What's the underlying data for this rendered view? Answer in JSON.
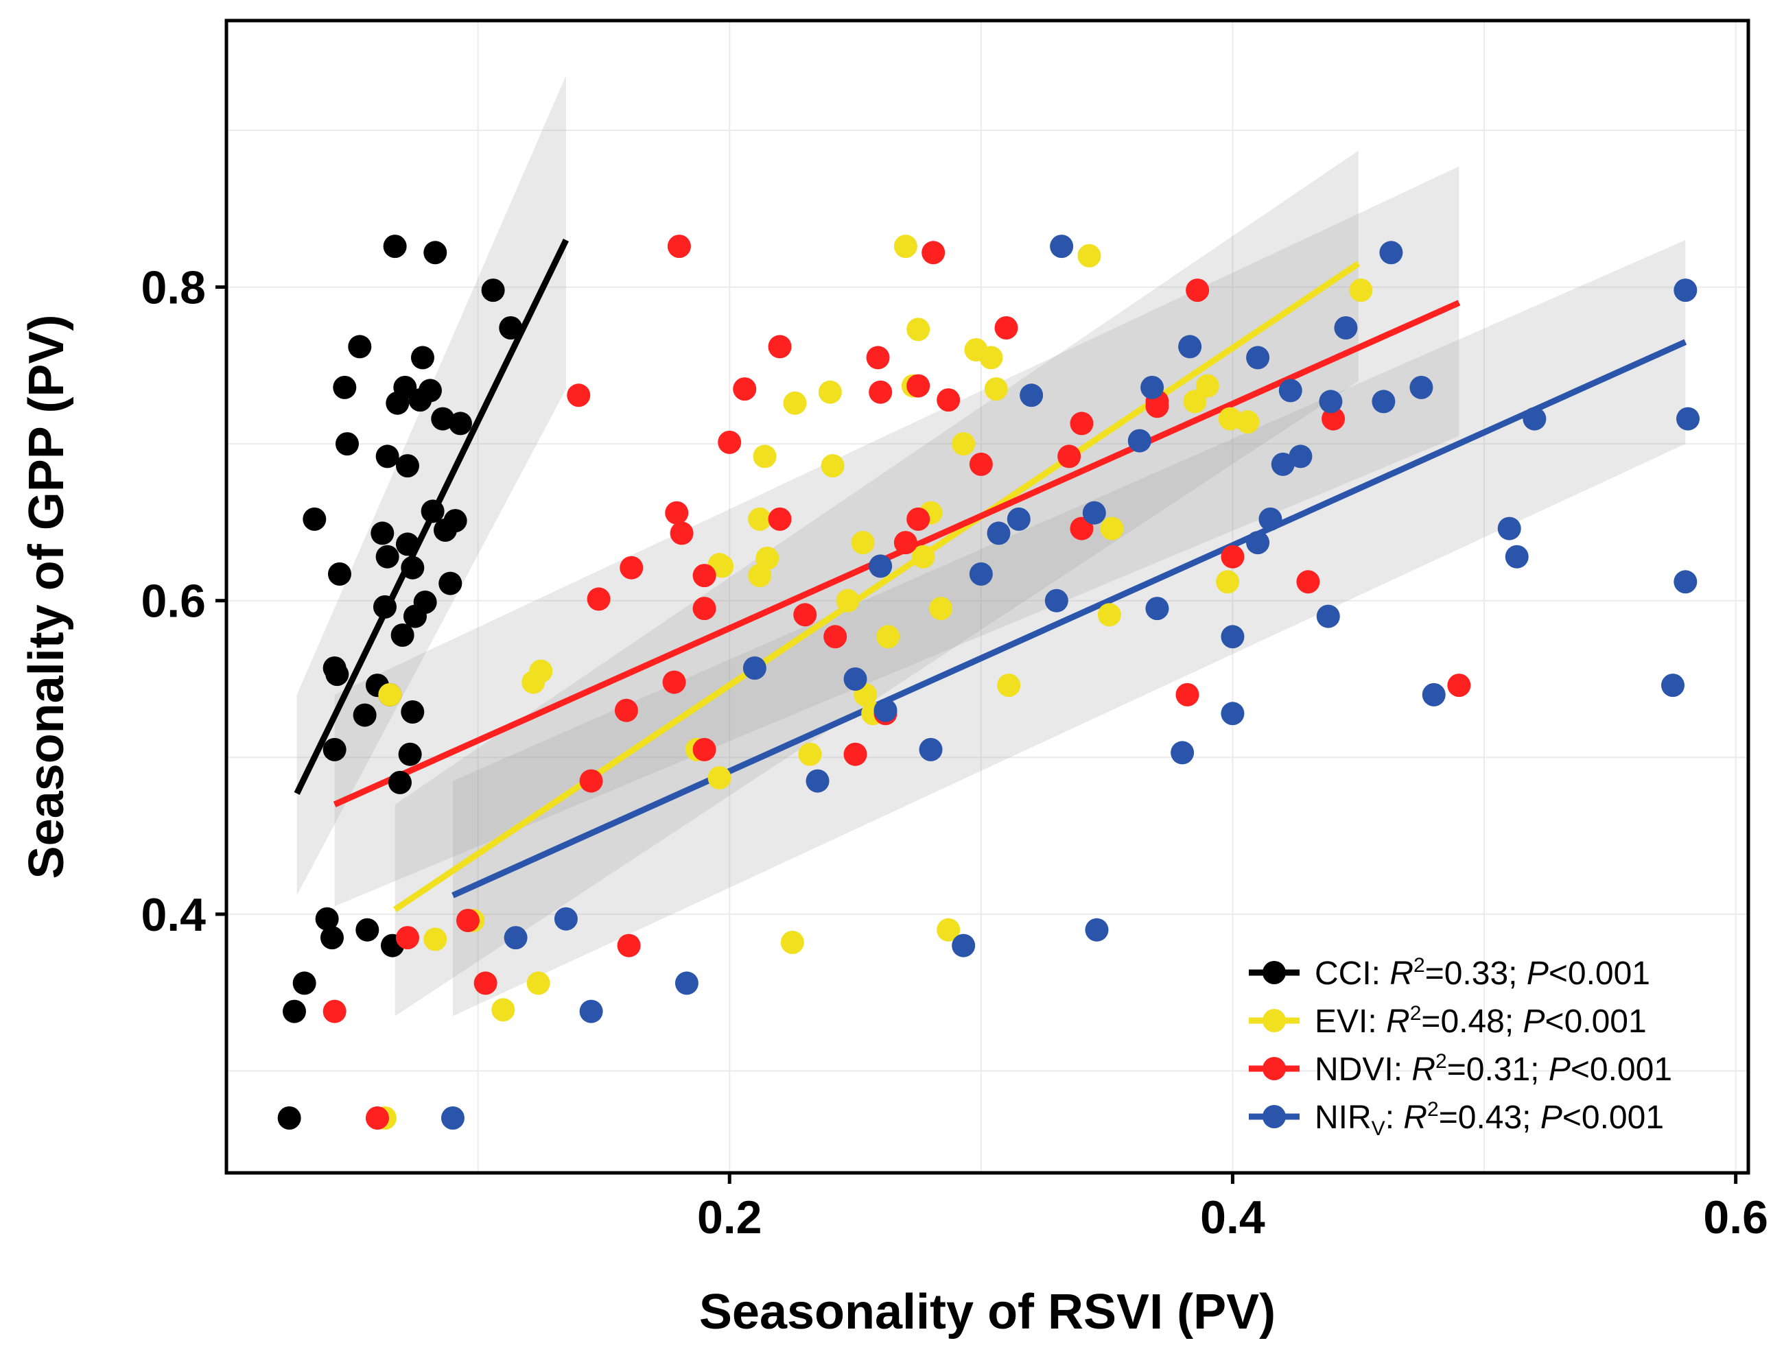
{
  "chart_data": {
    "type": "scatter",
    "title": "",
    "xlabel": "Seasonality of RSVI (PV)",
    "ylabel": "Seasonality of GPP (PV)",
    "xlim": [
      0.0,
      0.605
    ],
    "ylim": [
      0.235,
      0.97
    ],
    "xticks": [
      0.2,
      0.4,
      0.6
    ],
    "xtick_labels": [
      "0.2",
      "0.4",
      "0.6"
    ],
    "yticks": [
      0.4,
      0.6,
      0.8
    ],
    "ytick_labels": [
      "0.4",
      "0.6",
      "0.8"
    ],
    "grid": true,
    "legend_position": "bottom-right",
    "series": [
      {
        "name": "CCI",
        "label": "CCI",
        "r2": "0.33",
        "p": "0.001",
        "color": "#000000",
        "fit": {
          "x0": 0.028,
          "y0": 0.477,
          "x1": 0.135,
          "y1": 0.83
        },
        "ci": {
          "x0": 0.028,
          "x1": 0.135,
          "lo0": 0.412,
          "hi0": 0.54,
          "lo1": 0.735,
          "hi1": 0.935
        },
        "points": [
          [
            0.035,
            0.652
          ],
          [
            0.04,
            0.397
          ],
          [
            0.042,
            0.385
          ],
          [
            0.043,
            0.505
          ],
          [
            0.044,
            0.553
          ],
          [
            0.045,
            0.617
          ],
          [
            0.047,
            0.736
          ],
          [
            0.048,
            0.7
          ],
          [
            0.053,
            0.762
          ],
          [
            0.056,
            0.39
          ],
          [
            0.055,
            0.527
          ],
          [
            0.06,
            0.546
          ],
          [
            0.062,
            0.643
          ],
          [
            0.063,
            0.596
          ],
          [
            0.064,
            0.628
          ],
          [
            0.064,
            0.692
          ],
          [
            0.065,
            0.54
          ],
          [
            0.066,
            0.38
          ],
          [
            0.067,
            0.826
          ],
          [
            0.068,
            0.726
          ],
          [
            0.07,
            0.578
          ],
          [
            0.071,
            0.736
          ],
          [
            0.072,
            0.636
          ],
          [
            0.072,
            0.686
          ],
          [
            0.073,
            0.502
          ],
          [
            0.074,
            0.621
          ],
          [
            0.075,
            0.59
          ],
          [
            0.077,
            0.728
          ],
          [
            0.078,
            0.755
          ],
          [
            0.079,
            0.599
          ],
          [
            0.081,
            0.734
          ],
          [
            0.082,
            0.657
          ],
          [
            0.083,
            0.822
          ],
          [
            0.086,
            0.716
          ],
          [
            0.087,
            0.645
          ],
          [
            0.089,
            0.611
          ],
          [
            0.091,
            0.651
          ],
          [
            0.093,
            0.713
          ],
          [
            0.106,
            0.798
          ],
          [
            0.113,
            0.774
          ],
          [
            0.031,
            0.356
          ],
          [
            0.027,
            0.338
          ],
          [
            0.025,
            0.27
          ],
          [
            0.069,
            0.484
          ],
          [
            0.074,
            0.529
          ],
          [
            0.043,
            0.557
          ]
        ]
      },
      {
        "name": "EVI",
        "label": "EVI",
        "r2": "0.48",
        "p": "0.001",
        "color": "#f0e020",
        "fit": {
          "x0": 0.067,
          "y0": 0.403,
          "x1": 0.45,
          "y1": 0.815
        },
        "ci": {
          "x0": 0.067,
          "x1": 0.45,
          "lo0": 0.335,
          "hi0": 0.47,
          "lo1": 0.74,
          "hi1": 0.887
        },
        "points": [
          [
            0.083,
            0.384
          ],
          [
            0.098,
            0.396
          ],
          [
            0.11,
            0.339
          ],
          [
            0.124,
            0.356
          ],
          [
            0.125,
            0.555
          ],
          [
            0.122,
            0.548
          ],
          [
            0.196,
            0.487
          ],
          [
            0.187,
            0.505
          ],
          [
            0.197,
            0.622
          ],
          [
            0.212,
            0.616
          ],
          [
            0.214,
            0.692
          ],
          [
            0.212,
            0.652
          ],
          [
            0.225,
            0.382
          ],
          [
            0.226,
            0.726
          ],
          [
            0.232,
            0.502
          ],
          [
            0.24,
            0.733
          ],
          [
            0.241,
            0.686
          ],
          [
            0.247,
            0.6
          ],
          [
            0.253,
            0.637
          ],
          [
            0.254,
            0.54
          ],
          [
            0.257,
            0.528
          ],
          [
            0.263,
            0.577
          ],
          [
            0.27,
            0.826
          ],
          [
            0.275,
            0.773
          ],
          [
            0.273,
            0.737
          ],
          [
            0.277,
            0.628
          ],
          [
            0.28,
            0.656
          ],
          [
            0.284,
            0.595
          ],
          [
            0.287,
            0.39
          ],
          [
            0.293,
            0.7
          ],
          [
            0.298,
            0.76
          ],
          [
            0.304,
            0.755
          ],
          [
            0.306,
            0.735
          ],
          [
            0.311,
            0.546
          ],
          [
            0.343,
            0.82
          ],
          [
            0.351,
            0.591
          ],
          [
            0.352,
            0.646
          ],
          [
            0.385,
            0.727
          ],
          [
            0.39,
            0.737
          ],
          [
            0.398,
            0.612
          ],
          [
            0.399,
            0.716
          ],
          [
            0.406,
            0.714
          ],
          [
            0.451,
            0.798
          ],
          [
            0.215,
            0.627
          ],
          [
            0.196,
            0.623
          ],
          [
            0.063,
            0.27
          ],
          [
            0.065,
            0.54
          ]
        ]
      },
      {
        "name": "NDVI",
        "label": "NDVI",
        "r2": "0.31",
        "p": "0.001",
        "color": "#ff2020",
        "fit": {
          "x0": 0.043,
          "y0": 0.47,
          "x1": 0.49,
          "y1": 0.79
        },
        "ci": {
          "x0": 0.043,
          "x1": 0.49,
          "lo0": 0.405,
          "hi0": 0.54,
          "lo1": 0.705,
          "hi1": 0.877
        },
        "points": [
          [
            0.043,
            0.338
          ],
          [
            0.072,
            0.385
          ],
          [
            0.096,
            0.396
          ],
          [
            0.103,
            0.356
          ],
          [
            0.14,
            0.731
          ],
          [
            0.148,
            0.601
          ],
          [
            0.145,
            0.485
          ],
          [
            0.16,
            0.38
          ],
          [
            0.161,
            0.621
          ],
          [
            0.159,
            0.53
          ],
          [
            0.18,
            0.826
          ],
          [
            0.178,
            0.548
          ],
          [
            0.179,
            0.656
          ],
          [
            0.181,
            0.643
          ],
          [
            0.19,
            0.616
          ],
          [
            0.19,
            0.595
          ],
          [
            0.19,
            0.505
          ],
          [
            0.2,
            0.701
          ],
          [
            0.206,
            0.735
          ],
          [
            0.22,
            0.762
          ],
          [
            0.22,
            0.652
          ],
          [
            0.23,
            0.591
          ],
          [
            0.242,
            0.577
          ],
          [
            0.25,
            0.502
          ],
          [
            0.259,
            0.755
          ],
          [
            0.26,
            0.733
          ],
          [
            0.262,
            0.528
          ],
          [
            0.27,
            0.637
          ],
          [
            0.275,
            0.737
          ],
          [
            0.275,
            0.652
          ],
          [
            0.281,
            0.822
          ],
          [
            0.287,
            0.728
          ],
          [
            0.3,
            0.687
          ],
          [
            0.31,
            0.774
          ],
          [
            0.335,
            0.692
          ],
          [
            0.34,
            0.713
          ],
          [
            0.34,
            0.646
          ],
          [
            0.37,
            0.727
          ],
          [
            0.382,
            0.54
          ],
          [
            0.386,
            0.798
          ],
          [
            0.4,
            0.628
          ],
          [
            0.43,
            0.612
          ],
          [
            0.44,
            0.716
          ],
          [
            0.49,
            0.546
          ],
          [
            0.06,
            0.27
          ],
          [
            0.37,
            0.724
          ]
        ]
      },
      {
        "name": "NIRv",
        "label": "NIR",
        "label_sub": "V",
        "r2": "0.43",
        "p": "0.001",
        "color": "#2a55aa",
        "fit": {
          "x0": 0.09,
          "y0": 0.412,
          "x1": 0.58,
          "y1": 0.765
        },
        "ci": {
          "x0": 0.09,
          "x1": 0.58,
          "lo0": 0.335,
          "hi0": 0.485,
          "lo1": 0.7,
          "hi1": 0.83
        },
        "points": [
          [
            0.09,
            0.27
          ],
          [
            0.115,
            0.385
          ],
          [
            0.135,
            0.397
          ],
          [
            0.145,
            0.338
          ],
          [
            0.183,
            0.356
          ],
          [
            0.21,
            0.557
          ],
          [
            0.235,
            0.485
          ],
          [
            0.25,
            0.55
          ],
          [
            0.26,
            0.622
          ],
          [
            0.262,
            0.53
          ],
          [
            0.28,
            0.505
          ],
          [
            0.293,
            0.38
          ],
          [
            0.3,
            0.617
          ],
          [
            0.307,
            0.643
          ],
          [
            0.315,
            0.652
          ],
          [
            0.32,
            0.731
          ],
          [
            0.33,
            0.6
          ],
          [
            0.332,
            0.826
          ],
          [
            0.345,
            0.656
          ],
          [
            0.346,
            0.39
          ],
          [
            0.363,
            0.702
          ],
          [
            0.368,
            0.736
          ],
          [
            0.37,
            0.595
          ],
          [
            0.38,
            0.503
          ],
          [
            0.383,
            0.762
          ],
          [
            0.4,
            0.577
          ],
          [
            0.4,
            0.528
          ],
          [
            0.41,
            0.755
          ],
          [
            0.41,
            0.637
          ],
          [
            0.415,
            0.652
          ],
          [
            0.42,
            0.687
          ],
          [
            0.423,
            0.734
          ],
          [
            0.427,
            0.692
          ],
          [
            0.438,
            0.59
          ],
          [
            0.439,
            0.727
          ],
          [
            0.445,
            0.774
          ],
          [
            0.46,
            0.727
          ],
          [
            0.463,
            0.822
          ],
          [
            0.475,
            0.736
          ],
          [
            0.48,
            0.54
          ],
          [
            0.51,
            0.646
          ],
          [
            0.513,
            0.628
          ],
          [
            0.52,
            0.716
          ],
          [
            0.575,
            0.546
          ],
          [
            0.58,
            0.798
          ],
          [
            0.581,
            0.716
          ],
          [
            0.58,
            0.612
          ]
        ]
      }
    ]
  }
}
